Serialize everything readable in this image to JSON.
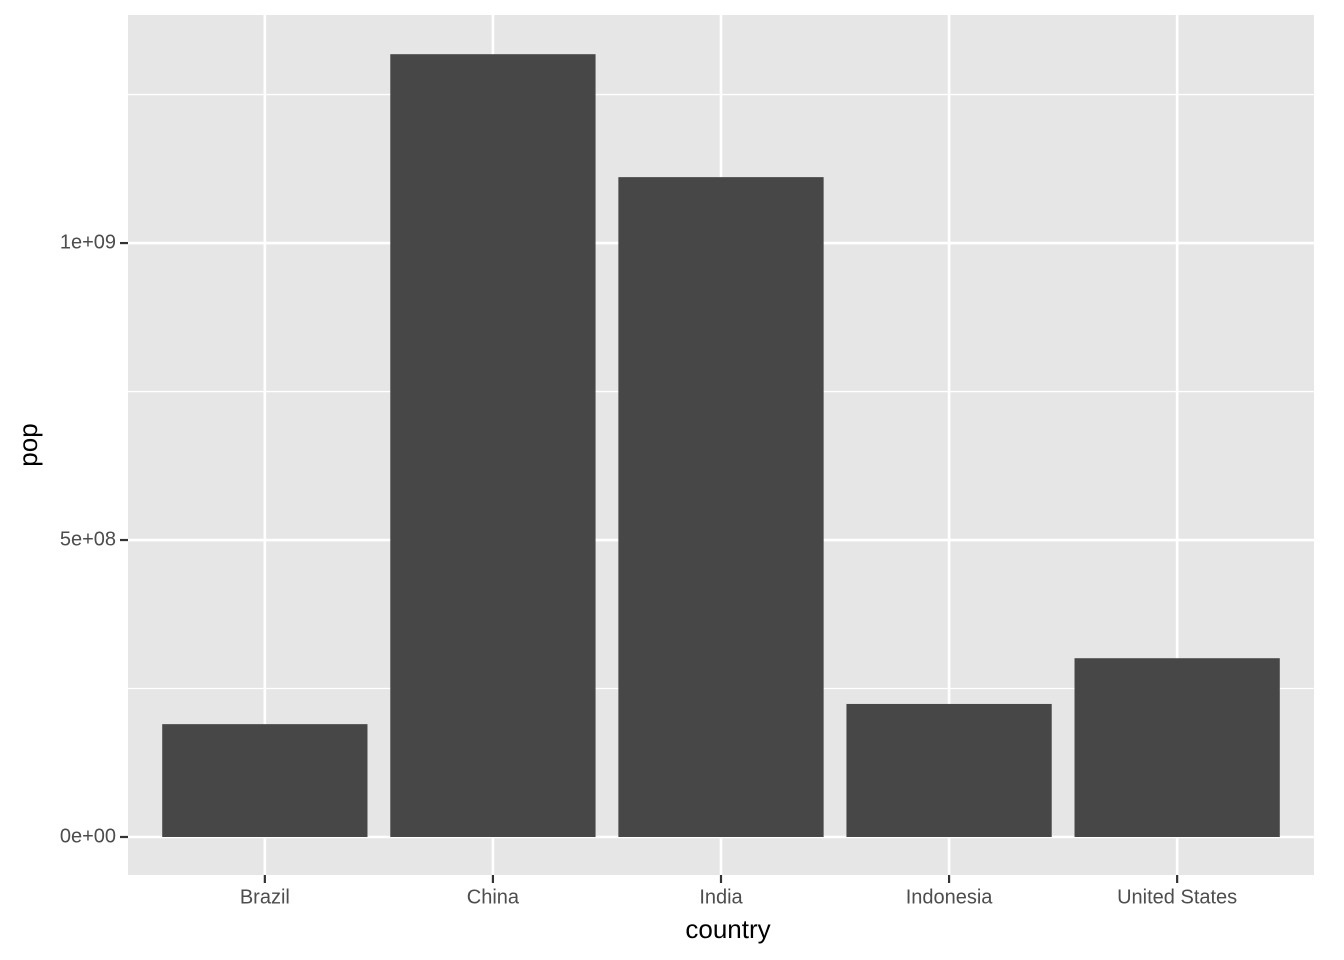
{
  "chart_data": {
    "type": "bar",
    "x_label": "country",
    "y_label": "pop",
    "categories": [
      "Brazil",
      "China",
      "India",
      "Indonesia",
      "United States"
    ],
    "values": [
      190000000,
      1318000000,
      1111000000,
      224000000,
      301000000
    ],
    "color": "#474747",
    "ylim": [
      -64000000,
      1384000000
    ],
    "yticks": [
      {
        "value": 0,
        "label": "0e+00"
      },
      {
        "value": 500000000,
        "label": "5e+08"
      },
      {
        "value": 1000000000,
        "label": "1e+09"
      }
    ],
    "yminorticks": [
      250000000,
      750000000,
      1250000000
    ],
    "grid": true
  }
}
